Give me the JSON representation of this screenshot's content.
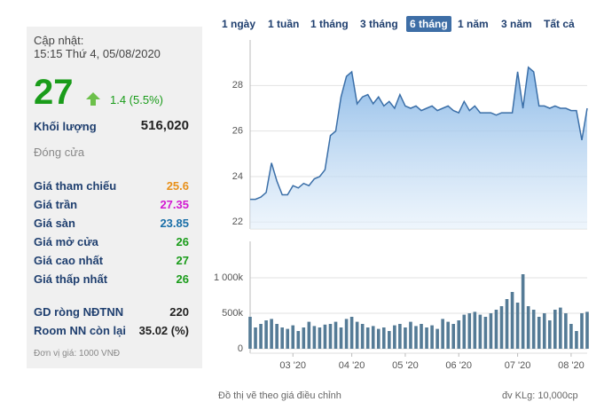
{
  "panel": {
    "update_label": "Cập nhật:",
    "update_time": "15:15 Thứ 4, 05/08/2020",
    "price": "27",
    "change": "1.4 (5.5%)",
    "volume_label": "Khối lượng",
    "volume": "516,020",
    "status": "Đóng cửa",
    "prices": [
      {
        "label": "Giá tham chiếu",
        "value": "25.6"
      },
      {
        "label": "Giá trần",
        "value": "27.35"
      },
      {
        "label": "Giá sàn",
        "value": "23.85"
      },
      {
        "label": "Giá mở cửa",
        "value": "26"
      },
      {
        "label": "Giá cao nhất",
        "value": "27"
      },
      {
        "label": "Giá thấp nhất",
        "value": "26"
      }
    ],
    "foreign": [
      {
        "label": "GD ròng NĐTNN",
        "value": "220"
      },
      {
        "label": "Room NN còn lại",
        "value": "35.02 (%)"
      }
    ],
    "unit_note": "Đơn vị giá: 1000 VNĐ"
  },
  "tabs": {
    "items": [
      "1 ngày",
      "1 tuần",
      "1 tháng",
      "3 tháng",
      "6 tháng",
      "1 năm",
      "3 năm",
      "Tất cả"
    ],
    "active": "6 tháng"
  },
  "footer": {
    "note": "Đồ thị vẽ theo giá điều chỉnh",
    "unit": "đv KLg: 10,000cp"
  },
  "chart_data": [
    {
      "type": "area",
      "color": "#3b6fa8",
      "grid": true,
      "categories": [
        null,
        null,
        null,
        null,
        null,
        null,
        null,
        null,
        null,
        null,
        null,
        null,
        null,
        null,
        null,
        null,
        null,
        null,
        null,
        null,
        null,
        null,
        null,
        null,
        null,
        null,
        null,
        null,
        null,
        null,
        null,
        null,
        null,
        null,
        null,
        null,
        null,
        null,
        null,
        null,
        null,
        null,
        null,
        null,
        null,
        null,
        null,
        null,
        null,
        null,
        null,
        null,
        null,
        null,
        null,
        null,
        null,
        null,
        null,
        null,
        null,
        null,
        null,
        null
      ],
      "values": [
        23.0,
        23.0,
        23.1,
        23.3,
        24.6,
        23.8,
        23.2,
        23.2,
        23.6,
        23.5,
        23.7,
        23.6,
        23.9,
        24.0,
        24.3,
        25.8,
        26.0,
        27.5,
        28.4,
        28.6,
        27.2,
        27.5,
        27.6,
        27.2,
        27.5,
        27.1,
        27.3,
        27.0,
        27.6,
        27.1,
        27.0,
        27.1,
        26.9,
        27.0,
        27.1,
        26.9,
        27.0,
        27.1,
        26.9,
        26.8,
        27.3,
        26.9,
        27.1,
        26.8,
        26.8,
        26.8,
        26.7,
        26.8,
        26.8,
        26.8,
        28.6,
        27.0,
        28.8,
        28.6,
        27.1,
        27.1,
        27.0,
        27.1,
        27.0,
        27.0,
        26.9,
        26.9,
        25.6,
        27.0
      ],
      "ylim": [
        21.7,
        30
      ],
      "yticks": [
        22,
        24,
        26,
        28
      ]
    },
    {
      "type": "bar",
      "color": "#557b96",
      "grid": true,
      "categories": [
        null,
        null,
        null,
        null,
        null,
        null,
        null,
        null,
        "03 '20",
        null,
        null,
        null,
        null,
        null,
        null,
        null,
        null,
        null,
        null,
        "04 '20",
        null,
        null,
        null,
        null,
        null,
        null,
        null,
        null,
        null,
        "05 '20",
        null,
        null,
        null,
        null,
        null,
        null,
        null,
        null,
        null,
        "06 '20",
        null,
        null,
        null,
        null,
        null,
        null,
        null,
        null,
        null,
        null,
        "07 '20",
        null,
        null,
        null,
        null,
        null,
        null,
        null,
        null,
        null,
        "08 '20",
        null,
        null,
        null
      ],
      "values": [
        450000,
        300000,
        350000,
        400000,
        420000,
        350000,
        300000,
        280000,
        330000,
        250000,
        300000,
        380000,
        320000,
        300000,
        340000,
        350000,
        380000,
        300000,
        420000,
        450000,
        380000,
        350000,
        300000,
        320000,
        280000,
        300000,
        250000,
        330000,
        350000,
        300000,
        380000,
        320000,
        350000,
        300000,
        330000,
        280000,
        420000,
        380000,
        350000,
        400000,
        480000,
        500000,
        520000,
        480000,
        450000,
        500000,
        550000,
        600000,
        700000,
        800000,
        650000,
        1050000,
        600000,
        550000,
        450000,
        500000,
        400000,
        550000,
        580000,
        500000,
        350000,
        250000,
        500000,
        520000
      ],
      "ylim": [
        -62500,
        1512500
      ],
      "yticks": [
        0,
        {
          "value": 500000,
          "label": "500k"
        },
        {
          "value": 1000000,
          "label": "1 000k"
        }
      ]
    }
  ]
}
